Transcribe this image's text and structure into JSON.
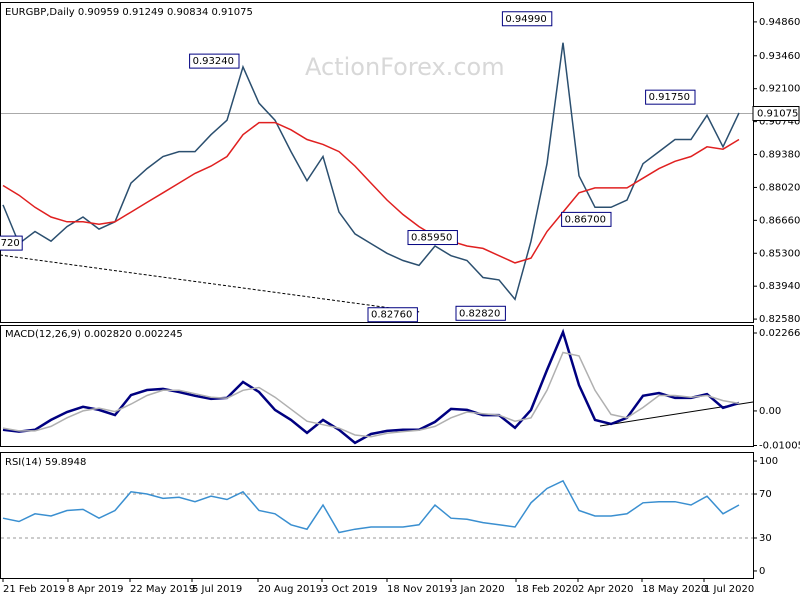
{
  "chart_data": [
    {
      "type": "line",
      "title": "EURGBP,Daily  0.90959 0.91249 0.90834 0.91075",
      "watermark": "ActionForex.com",
      "xlim": [
        0,
        46.875
      ],
      "ylim": [
        0.8246,
        0.956
      ],
      "yticks": [
        {
          "value": 0.9486,
          "label": "0.94860"
        },
        {
          "value": 0.9346,
          "label": "0.93460"
        },
        {
          "value": 0.921,
          "label": "0.92100"
        },
        {
          "value": 0.9074,
          "label": "0.90740"
        },
        {
          "value": 0.8938,
          "label": "0.89380"
        },
        {
          "value": 0.8802,
          "label": "0.88020"
        },
        {
          "value": 0.8666,
          "label": "0.86660"
        },
        {
          "value": 0.853,
          "label": "0.85300"
        },
        {
          "value": 0.8394,
          "label": "0.83940"
        },
        {
          "value": 0.8258,
          "label": "0.82580"
        }
      ],
      "last_price": {
        "value": 0.91075,
        "label": "0.91075"
      },
      "series": [
        {
          "color": "#2b4f6f",
          "values": [
            0.873,
            0.857,
            0.862,
            0.858,
            0.864,
            0.868,
            0.863,
            0.866,
            0.882,
            0.888,
            0.893,
            0.895,
            0.895,
            0.902,
            0.908,
            0.93,
            0.915,
            0.908,
            0.895,
            0.883,
            0.893,
            0.87,
            0.861,
            0.857,
            0.853,
            0.85,
            0.848,
            0.856,
            0.852,
            0.85,
            0.843,
            0.842,
            0.834,
            0.858,
            0.89,
            0.94,
            0.885,
            0.872,
            0.872,
            0.875,
            0.89,
            0.895,
            0.9,
            0.9,
            0.91,
            0.897,
            0.911
          ]
        },
        {
          "color": "#e02020",
          "values": [
            0.881,
            0.877,
            0.872,
            0.868,
            0.866,
            0.866,
            0.865,
            0.866,
            0.87,
            0.874,
            0.878,
            0.882,
            0.886,
            0.889,
            0.893,
            0.902,
            0.907,
            0.907,
            0.904,
            0.9,
            0.898,
            0.895,
            0.889,
            0.882,
            0.875,
            0.869,
            0.864,
            0.86,
            0.858,
            0.856,
            0.855,
            0.852,
            0.849,
            0.851,
            0.862,
            0.87,
            0.878,
            0.88,
            0.88,
            0.88,
            0.884,
            0.888,
            0.891,
            0.893,
            0.897,
            0.896,
            0.9
          ]
        }
      ],
      "annotations": [
        {
          "label": "0.93240",
          "x": 14.75,
          "value": 0.9324
        },
        {
          "label": "0.94990",
          "x": 34.3,
          "value": 0.9499
        },
        {
          "label": "0.91750",
          "x": 43.25,
          "value": 0.9175
        },
        {
          "label": "0.86700",
          "x": 38,
          "value": 0.867
        },
        {
          "label": "0.85950",
          "x": 28.4,
          "value": 0.8595
        },
        {
          "label": "0.82760",
          "x": 25.9,
          "value": 0.8276
        },
        {
          "label": "0.82820",
          "x": 31.4,
          "value": 0.8282
        },
        {
          "label": "720",
          "x": 1.2,
          "value": 0.8572
        }
      ]
    },
    {
      "type": "line",
      "title": "MACD(12,26,9) 0.002820 0.002245",
      "xlim": [
        0,
        46.875
      ],
      "ylim": [
        -0.0102,
        0.0247
      ],
      "yticks": [
        0.022662,
        {
          "value": 0,
          "label": "0.00"
        },
        -0.010052
      ],
      "series": [
        {
          "color": "#000080",
          "values": [
            -0.0055,
            -0.006,
            -0.0055,
            -0.0026,
            -0.0003,
            0.0012,
            0.0003,
            -0.0012,
            0.0046,
            0.0061,
            0.0064,
            0.0055,
            0.0044,
            0.0035,
            0.0038,
            0.0084,
            0.0055,
            0.0003,
            -0.0026,
            -0.0064,
            -0.0026,
            -0.0055,
            -0.0093,
            -0.0067,
            -0.0058,
            -0.0055,
            -0.0055,
            -0.0032,
            0.0006,
            0.0003,
            -0.0012,
            -0.0012,
            -0.0049,
            0.0003,
            0.0119,
            0.0229,
            0.0075,
            -0.0026,
            -0.0038,
            -0.002,
            0.0044,
            0.0052,
            0.0038,
            0.0038,
            0.0049,
            0.0009,
            0.0023
          ]
        },
        {
          "color": "#b0b0b0",
          "values": [
            -0.005,
            -0.0058,
            -0.0058,
            -0.0045,
            -0.002,
            0.0,
            0.0008,
            -0.0002,
            0.002,
            0.0045,
            0.006,
            0.006,
            0.005,
            0.004,
            0.0037,
            0.006,
            0.0068,
            0.004,
            0.0005,
            -0.003,
            -0.004,
            -0.005,
            -0.007,
            -0.0075,
            -0.0065,
            -0.006,
            -0.0056,
            -0.0045,
            -0.002,
            -0.0003,
            -0.0008,
            -0.0012,
            -0.003,
            -0.002,
            0.006,
            0.017,
            0.016,
            0.006,
            -0.001,
            -0.002,
            0.001,
            0.0045,
            0.0045,
            0.004,
            0.0045,
            0.003,
            0.0022
          ]
        }
      ]
    },
    {
      "type": "line",
      "title": "RSI(14) 59.8948",
      "xlim": [
        0,
        46.875
      ],
      "ylim": [
        -6.4,
        106.4
      ],
      "yticks": [
        100,
        70,
        30,
        0
      ],
      "grid": true,
      "xticks": [
        {
          "value": 0,
          "label": "21 Feb 2019"
        },
        {
          "value": 4.0625,
          "label": "8 Apr 2019"
        },
        {
          "value": 7.9375,
          "label": "22 May 2019"
        },
        {
          "value": 11.8125,
          "label": "5 Jul 2019"
        },
        {
          "value": 15.9375,
          "label": "20 Aug 2019"
        },
        {
          "value": 19.9375,
          "label": "3 Oct 2019"
        },
        {
          "value": 24,
          "label": "18 Nov 2019"
        },
        {
          "value": 28,
          "label": "3 Jan 2020"
        },
        {
          "value": 32.0625,
          "label": "18 Feb 2020"
        },
        {
          "value": 35.9375,
          "label": "2 Apr 2020"
        },
        {
          "value": 39.9375,
          "label": "18 May 2020"
        },
        {
          "value": 43.8125,
          "label": "1 Jul 2020"
        }
      ],
      "series": [
        {
          "color": "#3a8fd0",
          "values": [
            48,
            45,
            52,
            50,
            55,
            56,
            48,
            55,
            72,
            70,
            66,
            67,
            63,
            68,
            65,
            72,
            55,
            52,
            42,
            38,
            60,
            35,
            38,
            40,
            40,
            40,
            42,
            60,
            48,
            47,
            44,
            42,
            40,
            62,
            75,
            82,
            55,
            50,
            50,
            52,
            62,
            63,
            63,
            60,
            68,
            52,
            60
          ]
        }
      ]
    }
  ]
}
